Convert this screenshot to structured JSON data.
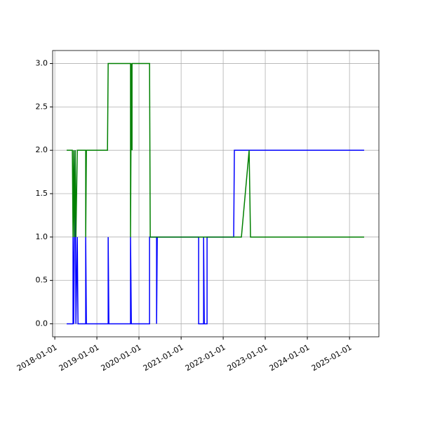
{
  "chart_data": {
    "type": "line",
    "xlim": [
      "2017-12-13",
      "2025-09-13"
    ],
    "xticks": [
      "2018-01-01",
      "2019-01-01",
      "2020-01-01",
      "2021-01-01",
      "2022-01-01",
      "2023-01-01",
      "2024-01-01",
      "2025-01-01"
    ],
    "ylim": [
      -0.15,
      3.15
    ],
    "yticks": [
      {
        "value": 0,
        "label": "0.0"
      },
      {
        "value": 0.5,
        "label": "0.5"
      },
      {
        "value": 1,
        "label": "1.0"
      },
      {
        "value": 1.5,
        "label": "1.5"
      },
      {
        "value": 2,
        "label": "2.0"
      },
      {
        "value": 2.5,
        "label": "2.5"
      },
      {
        "value": 3,
        "label": "3.0"
      }
    ],
    "grid": true,
    "series": [
      {
        "color": "#0000ff",
        "x": [
          "2018-04-14",
          "2018-06-08",
          "2018-06-08",
          "2018-06-14",
          "2018-06-27",
          "2018-07-03",
          "2018-07-15",
          "2018-07-21",
          "2018-09-26",
          "2018-09-26",
          "2018-10-02",
          "2019-04-09",
          "2019-04-09",
          "2019-04-15",
          "2019-10-20",
          "2019-10-20",
          "2019-10-27",
          "2020-04-02",
          "2020-04-02",
          "2020-06-02",
          "2020-06-02",
          "2020-06-08",
          "2021-06-02",
          "2021-06-02",
          "2021-07-15",
          "2021-07-15",
          "2021-07-21",
          "2021-08-14",
          "2021-08-14",
          "2022-04-02",
          "2022-04-08",
          "2025-05-08"
        ],
        "values": [
          0,
          0,
          1,
          0,
          2,
          0,
          1,
          0,
          0,
          1,
          0,
          0,
          1,
          0,
          0,
          1,
          0,
          0,
          1,
          1,
          0,
          1,
          1,
          0,
          0,
          1,
          0,
          0,
          1,
          1,
          2,
          2
        ]
      },
      {
        "color": "#008000",
        "x": [
          "2018-04-14",
          "2018-06-02",
          "2018-06-08",
          "2018-06-14",
          "2018-06-20",
          "2018-06-27",
          "2018-07-03",
          "2018-07-15",
          "2018-09-26",
          "2018-09-26",
          "2018-10-02",
          "2019-04-03",
          "2019-04-09",
          "2019-10-20",
          "2019-10-20",
          "2019-10-27",
          "2019-11-02",
          "2019-11-02",
          "2020-04-02",
          "2020-04-08",
          "2022-06-08",
          "2022-08-14",
          "2022-08-26",
          "2025-05-08"
        ],
        "values": [
          2,
          2,
          1,
          2,
          1,
          2,
          1,
          2,
          2,
          1,
          2,
          2,
          3,
          3,
          1,
          3,
          2,
          3,
          3,
          1,
          1,
          2,
          1,
          1
        ]
      }
    ]
  }
}
